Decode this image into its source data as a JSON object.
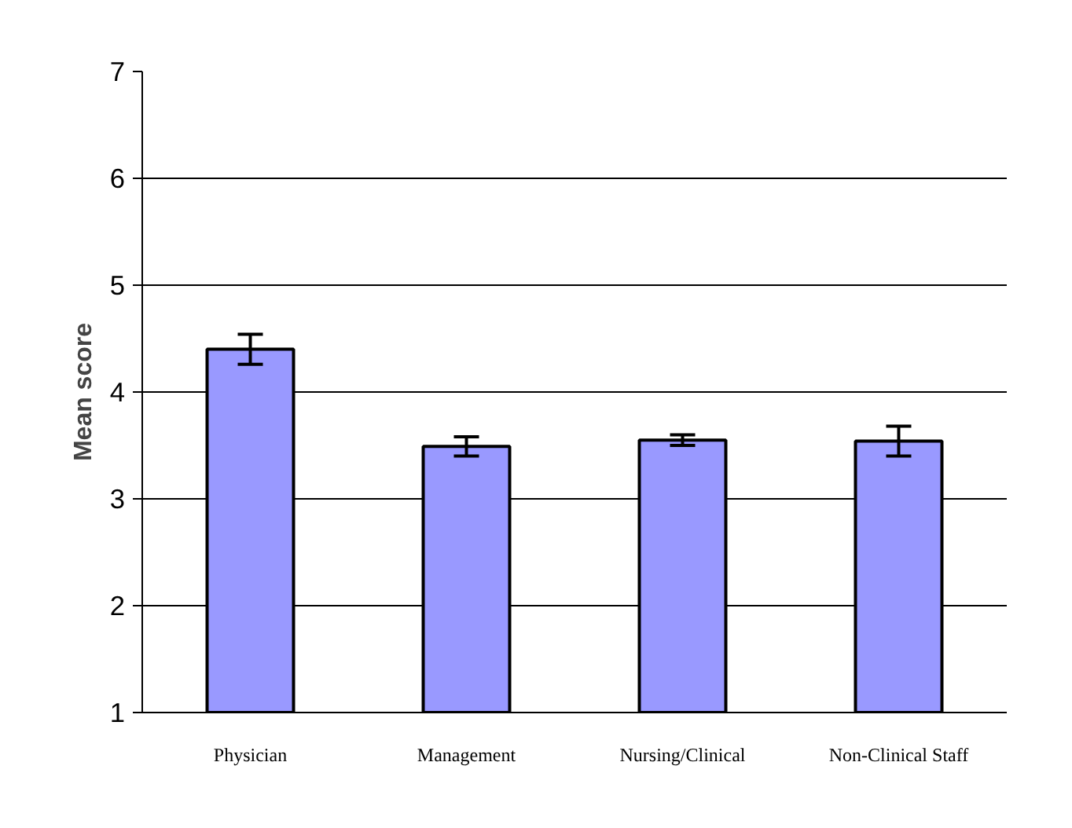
{
  "chart_data": {
    "type": "bar",
    "ylabel": "Mean score",
    "categories": [
      "Physician",
      "Management",
      "Nursing/Clinical",
      "Non-Clinical Staff"
    ],
    "values": [
      4.4,
      3.49,
      3.55,
      3.54
    ],
    "errors": [
      0.14,
      0.09,
      0.05,
      0.14
    ],
    "color": "#9999ff",
    "ylim": [
      1,
      7
    ],
    "yticks": [
      1,
      2,
      3,
      4,
      5,
      6,
      7
    ],
    "grid": "y"
  }
}
